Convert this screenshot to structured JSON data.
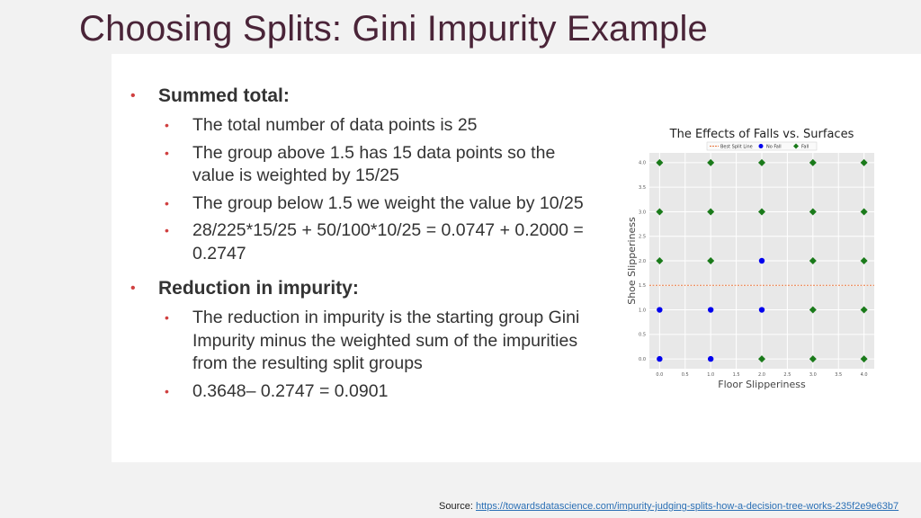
{
  "slide": {
    "title": "Choosing Splits: Gini Impurity Example"
  },
  "bullets": [
    {
      "label": "Summed total:",
      "items": [
        "The total number of data points is 25",
        "The group above 1.5 has 15 data points so the value is weighted by 15/25",
        "The group below 1.5 we weight the value by 10/25",
        "28/225*15/25 + 50/100*10/25 = 0.0747 + 0.2000 = 0.2747"
      ]
    },
    {
      "label": "Reduction in impurity:",
      "items": [
        "The reduction in impurity is the starting group Gini Impurity minus the weighted sum of the impurities from the resulting split groups",
        "0.3648– 0.2747 = 0.0901"
      ]
    }
  ],
  "source": {
    "label": "Source:",
    "link_text": "https://towardsdatascience.com/impurity-judging-splits-how-a-decision-tree-works-235f2e9e63b7"
  },
  "chart_data": {
    "type": "scatter",
    "title": "The Effects of Falls vs. Surfaces",
    "xlabel": "Floor Slipperiness",
    "ylabel": "Shoe Slipperiness",
    "xlim": [
      -0.2,
      4.2
    ],
    "ylim": [
      -0.2,
      4.2
    ],
    "xticks": [
      "0.0",
      "0.5",
      "1.0",
      "1.5",
      "2.0",
      "2.5",
      "3.0",
      "3.5",
      "4.0"
    ],
    "yticks": [
      "0.0",
      "0.5",
      "1.0",
      "1.5",
      "2.0",
      "2.5",
      "3.0",
      "3.5",
      "4.0"
    ],
    "grid": true,
    "legend_position": "top",
    "split_line": {
      "name": "Best Split Line",
      "y": 1.5,
      "color": "#e8743b"
    },
    "series": [
      {
        "name": "No Fall",
        "color": "#0000ee",
        "marker": "circle",
        "points": [
          [
            0,
            0
          ],
          [
            1,
            0
          ],
          [
            0,
            1
          ],
          [
            1,
            1
          ],
          [
            2,
            1
          ],
          [
            2,
            2
          ]
        ]
      },
      {
        "name": "Fall",
        "color": "#1a7a1a",
        "marker": "diamond",
        "points": [
          [
            2,
            0
          ],
          [
            3,
            0
          ],
          [
            4,
            0
          ],
          [
            3,
            1
          ],
          [
            4,
            1
          ],
          [
            0,
            2
          ],
          [
            1,
            2
          ],
          [
            3,
            2
          ],
          [
            4,
            2
          ],
          [
            0,
            3
          ],
          [
            1,
            3
          ],
          [
            2,
            3
          ],
          [
            3,
            3
          ],
          [
            4,
            3
          ],
          [
            0,
            4
          ],
          [
            1,
            4
          ],
          [
            2,
            4
          ],
          [
            3,
            4
          ],
          [
            4,
            4
          ]
        ]
      }
    ]
  }
}
